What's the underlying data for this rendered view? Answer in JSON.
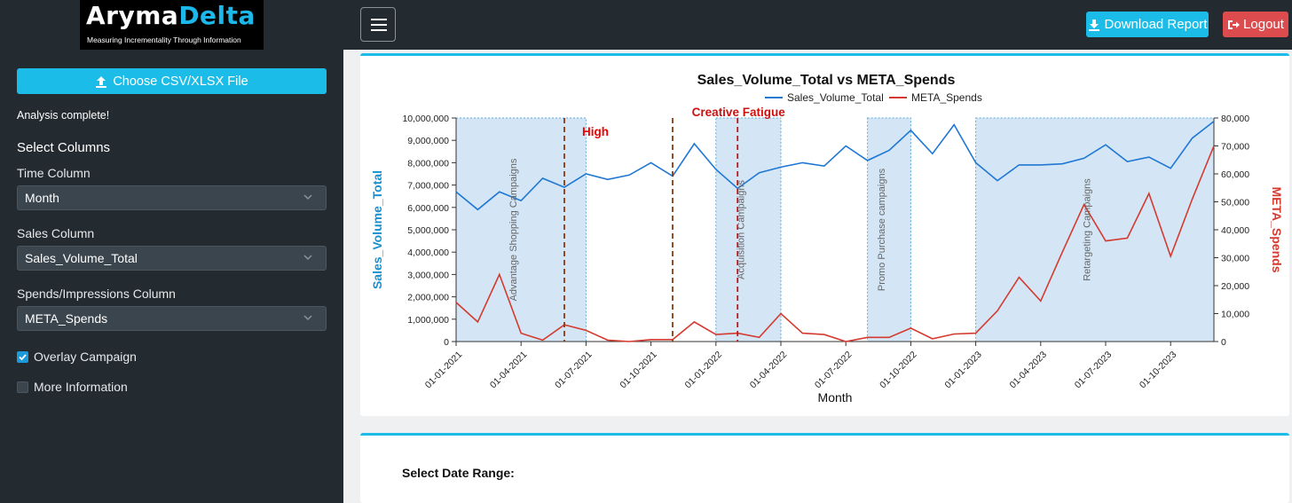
{
  "header": {
    "logo_part1": "Aryma",
    "logo_part2": "Delta",
    "logo_tagline": "Measuring Incrementality Through Information",
    "menu_icon": "hamburger-icon",
    "download_label": "Download Report",
    "logout_label": "Logout",
    "colors": {
      "topbar": "#232a30",
      "download": "#1cbce8",
      "logout": "#dc4b4e"
    }
  },
  "sidebar": {
    "upload_label": "Choose CSV/XLSX File",
    "status_text": "Analysis complete!",
    "section_title": "Select Columns",
    "time_label": "Time Column",
    "time_value": "Month",
    "sales_label": "Sales Column",
    "sales_value": "Sales_Volume_Total",
    "spends_label": "Spends/Impressions Column",
    "spends_value": "META_Spends",
    "overlay_label": "Overlay Campaign",
    "overlay_checked": true,
    "more_label": "More Information",
    "more_checked": false
  },
  "main": {
    "date_range_label": "Select Date Range:"
  },
  "chart_data": {
    "type": "line",
    "title": "Sales_Volume_Total vs META_Spends",
    "xlabel": "Month",
    "ylabel": "Sales_Volume_Total",
    "y2label": "META_Spends",
    "ylim": [
      0,
      10000000
    ],
    "y2lim": [
      0,
      80000
    ],
    "x_ticks": [
      "01-01-2021",
      "01-04-2021",
      "01-07-2021",
      "01-10-2021",
      "01-01-2022",
      "01-04-2022",
      "01-07-2022",
      "01-10-2022",
      "01-01-2023",
      "01-04-2023",
      "01-07-2023",
      "01-10-2023"
    ],
    "y_ticks": [
      "0",
      "1,000,000",
      "2,000,000",
      "3,000,000",
      "4,000,000",
      "5,000,000",
      "6,000,000",
      "7,000,000",
      "8,000,000",
      "9,000,000",
      "10,000,000"
    ],
    "y2_ticks": [
      "0",
      "10,000",
      "20,000",
      "30,000",
      "40,000",
      "50,000",
      "60,000",
      "70,000",
      "80,000"
    ],
    "legend": "top-center",
    "x": [
      "2021-01",
      "2021-02",
      "2021-03",
      "2021-04",
      "2021-05",
      "2021-06",
      "2021-07",
      "2021-08",
      "2021-09",
      "2021-10",
      "2021-11",
      "2021-12",
      "2022-01",
      "2022-02",
      "2022-03",
      "2022-04",
      "2022-05",
      "2022-06",
      "2022-07",
      "2022-08",
      "2022-09",
      "2022-10",
      "2022-11",
      "2022-12",
      "2023-01",
      "2023-02",
      "2023-03",
      "2023-04",
      "2023-05",
      "2023-06",
      "2023-07",
      "2023-08",
      "2023-09",
      "2023-10",
      "2023-11",
      "2023-12"
    ],
    "series": [
      {
        "name": "Sales_Volume_Total",
        "axis": "left",
        "color": "#1f77d4",
        "values": [
          6700000,
          5900000,
          6700000,
          6300000,
          7300000,
          6900000,
          7500000,
          7250000,
          7450000,
          8000000,
          7400000,
          8850000,
          7700000,
          6850000,
          7550000,
          7800000,
          8000000,
          7850000,
          8750000,
          8100000,
          8550000,
          9450000,
          8400000,
          9700000,
          8000000,
          7200000,
          7900000,
          7900000,
          7950000,
          8200000,
          8800000,
          8050000,
          8250000,
          7750000,
          9100000,
          9850000
        ]
      },
      {
        "name": "META_Spends",
        "axis": "right",
        "color": "#d43a2f",
        "values": [
          14000,
          7000,
          24000,
          3000,
          500,
          6000,
          4000,
          500,
          0,
          700,
          700,
          7000,
          2500,
          3000,
          1500,
          10000,
          3000,
          2500,
          0,
          1500,
          1500,
          4800,
          1000,
          2700,
          3000,
          11000,
          23000,
          14500,
          32000,
          49000,
          36000,
          37000,
          53000,
          30500,
          51000,
          70000
        ]
      }
    ],
    "campaigns": [
      {
        "label": "Advantage Shopping Campaigns",
        "start": "2021-01",
        "end": "2021-07"
      },
      {
        "label": "Acquisition Campaigns",
        "start": "2022-01",
        "end": "2022-04"
      },
      {
        "label": "Promo Purchase campaigns",
        "start": "2022-08",
        "end": "2022-10"
      },
      {
        "label": "Retargeting Campaigns",
        "start": "2023-01",
        "end": "2023-12"
      }
    ],
    "markers": [
      {
        "label": "High",
        "date": "2021-06",
        "color": "#8b3a10"
      },
      {
        "label": "",
        "date": "2021-11",
        "color": "#8b3a10"
      },
      {
        "label": "Creative Fatigue",
        "date": "2022-02",
        "color": "#cc1111"
      }
    ]
  }
}
